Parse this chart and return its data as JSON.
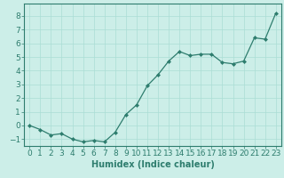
{
  "x": [
    0,
    1,
    2,
    3,
    4,
    5,
    6,
    7,
    8,
    9,
    10,
    11,
    12,
    13,
    14,
    15,
    16,
    17,
    18,
    19,
    20,
    21,
    22,
    23
  ],
  "y": [
    0.0,
    -0.3,
    -0.7,
    -0.6,
    -1.0,
    -1.2,
    -1.1,
    -1.2,
    -0.5,
    0.8,
    1.5,
    2.9,
    3.7,
    4.7,
    5.4,
    5.1,
    5.2,
    5.2,
    4.6,
    4.5,
    4.7,
    6.4,
    6.3,
    8.2
  ],
  "xlabel": "Humidex (Indice chaleur)",
  "xlim": [
    -0.5,
    23.5
  ],
  "ylim": [
    -1.5,
    8.9
  ],
  "yticks": [
    -1,
    0,
    1,
    2,
    3,
    4,
    5,
    6,
    7,
    8
  ],
  "xticks": [
    0,
    1,
    2,
    3,
    4,
    5,
    6,
    7,
    8,
    9,
    10,
    11,
    12,
    13,
    14,
    15,
    16,
    17,
    18,
    19,
    20,
    21,
    22,
    23
  ],
  "line_color": "#2e7d6e",
  "marker_color": "#2e7d6e",
  "bg_color": "#cceee8",
  "grid_color": "#aaddd5",
  "axis_color": "#2e7d6e",
  "tick_label_color": "#2e7d6e",
  "xlabel_color": "#2e7d6e",
  "font_size": 6.5
}
